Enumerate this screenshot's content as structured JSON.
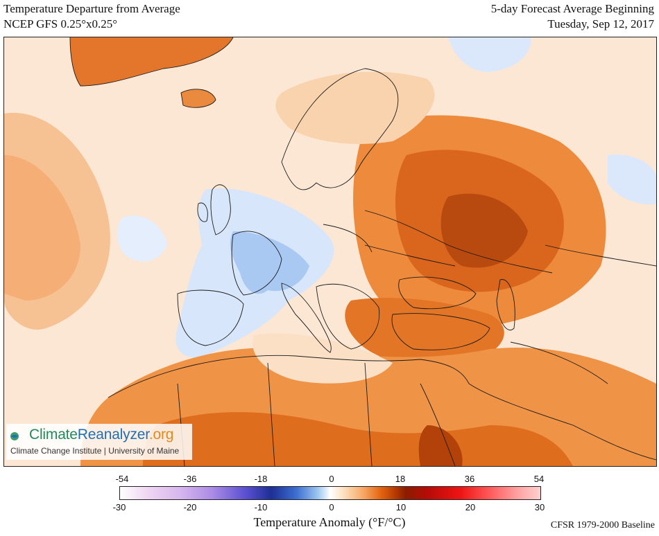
{
  "header": {
    "title_line1": "Temperature Departure from Average",
    "title_line2": "NCEP GFS 0.25°x0.25°",
    "forecast_line1": "5-day Forecast Average Beginning",
    "forecast_line2": "Tuesday, Sep 12, 2017"
  },
  "map": {
    "region": "Europe, North Africa and the Middle East",
    "colors": {
      "background": "#fbe7d4",
      "ocean_warm": "#f9d2ad",
      "light_orange": "#f6b27a",
      "orange": "#ee8a3b",
      "dark_orange": "#d9661c",
      "very_dark_orange": "#b84a10",
      "cool_light_blue": "#d7e6fb",
      "cool_blue": "#a9c8f2",
      "greenland_ice": "#e3762b",
      "border_line": "#1a1a1a"
    }
  },
  "branding": {
    "name_part1": "Climate",
    "name_part2": "Reanalyzer",
    "name_part3": ".org",
    "affiliation": "Climate Change Institute | University of Maine",
    "logo_icon": "globe-logo-icon"
  },
  "colorbar": {
    "fahrenheit_ticks": [
      "-54",
      "-36",
      "-18",
      "0",
      "18",
      "36",
      "54"
    ],
    "celsius_ticks": [
      "-30",
      "-20",
      "-10",
      "0",
      "10",
      "20",
      "30"
    ],
    "title": "Temperature Anomaly (°F/°C)",
    "baseline": "CFSR 1979-2000 Baseline"
  }
}
